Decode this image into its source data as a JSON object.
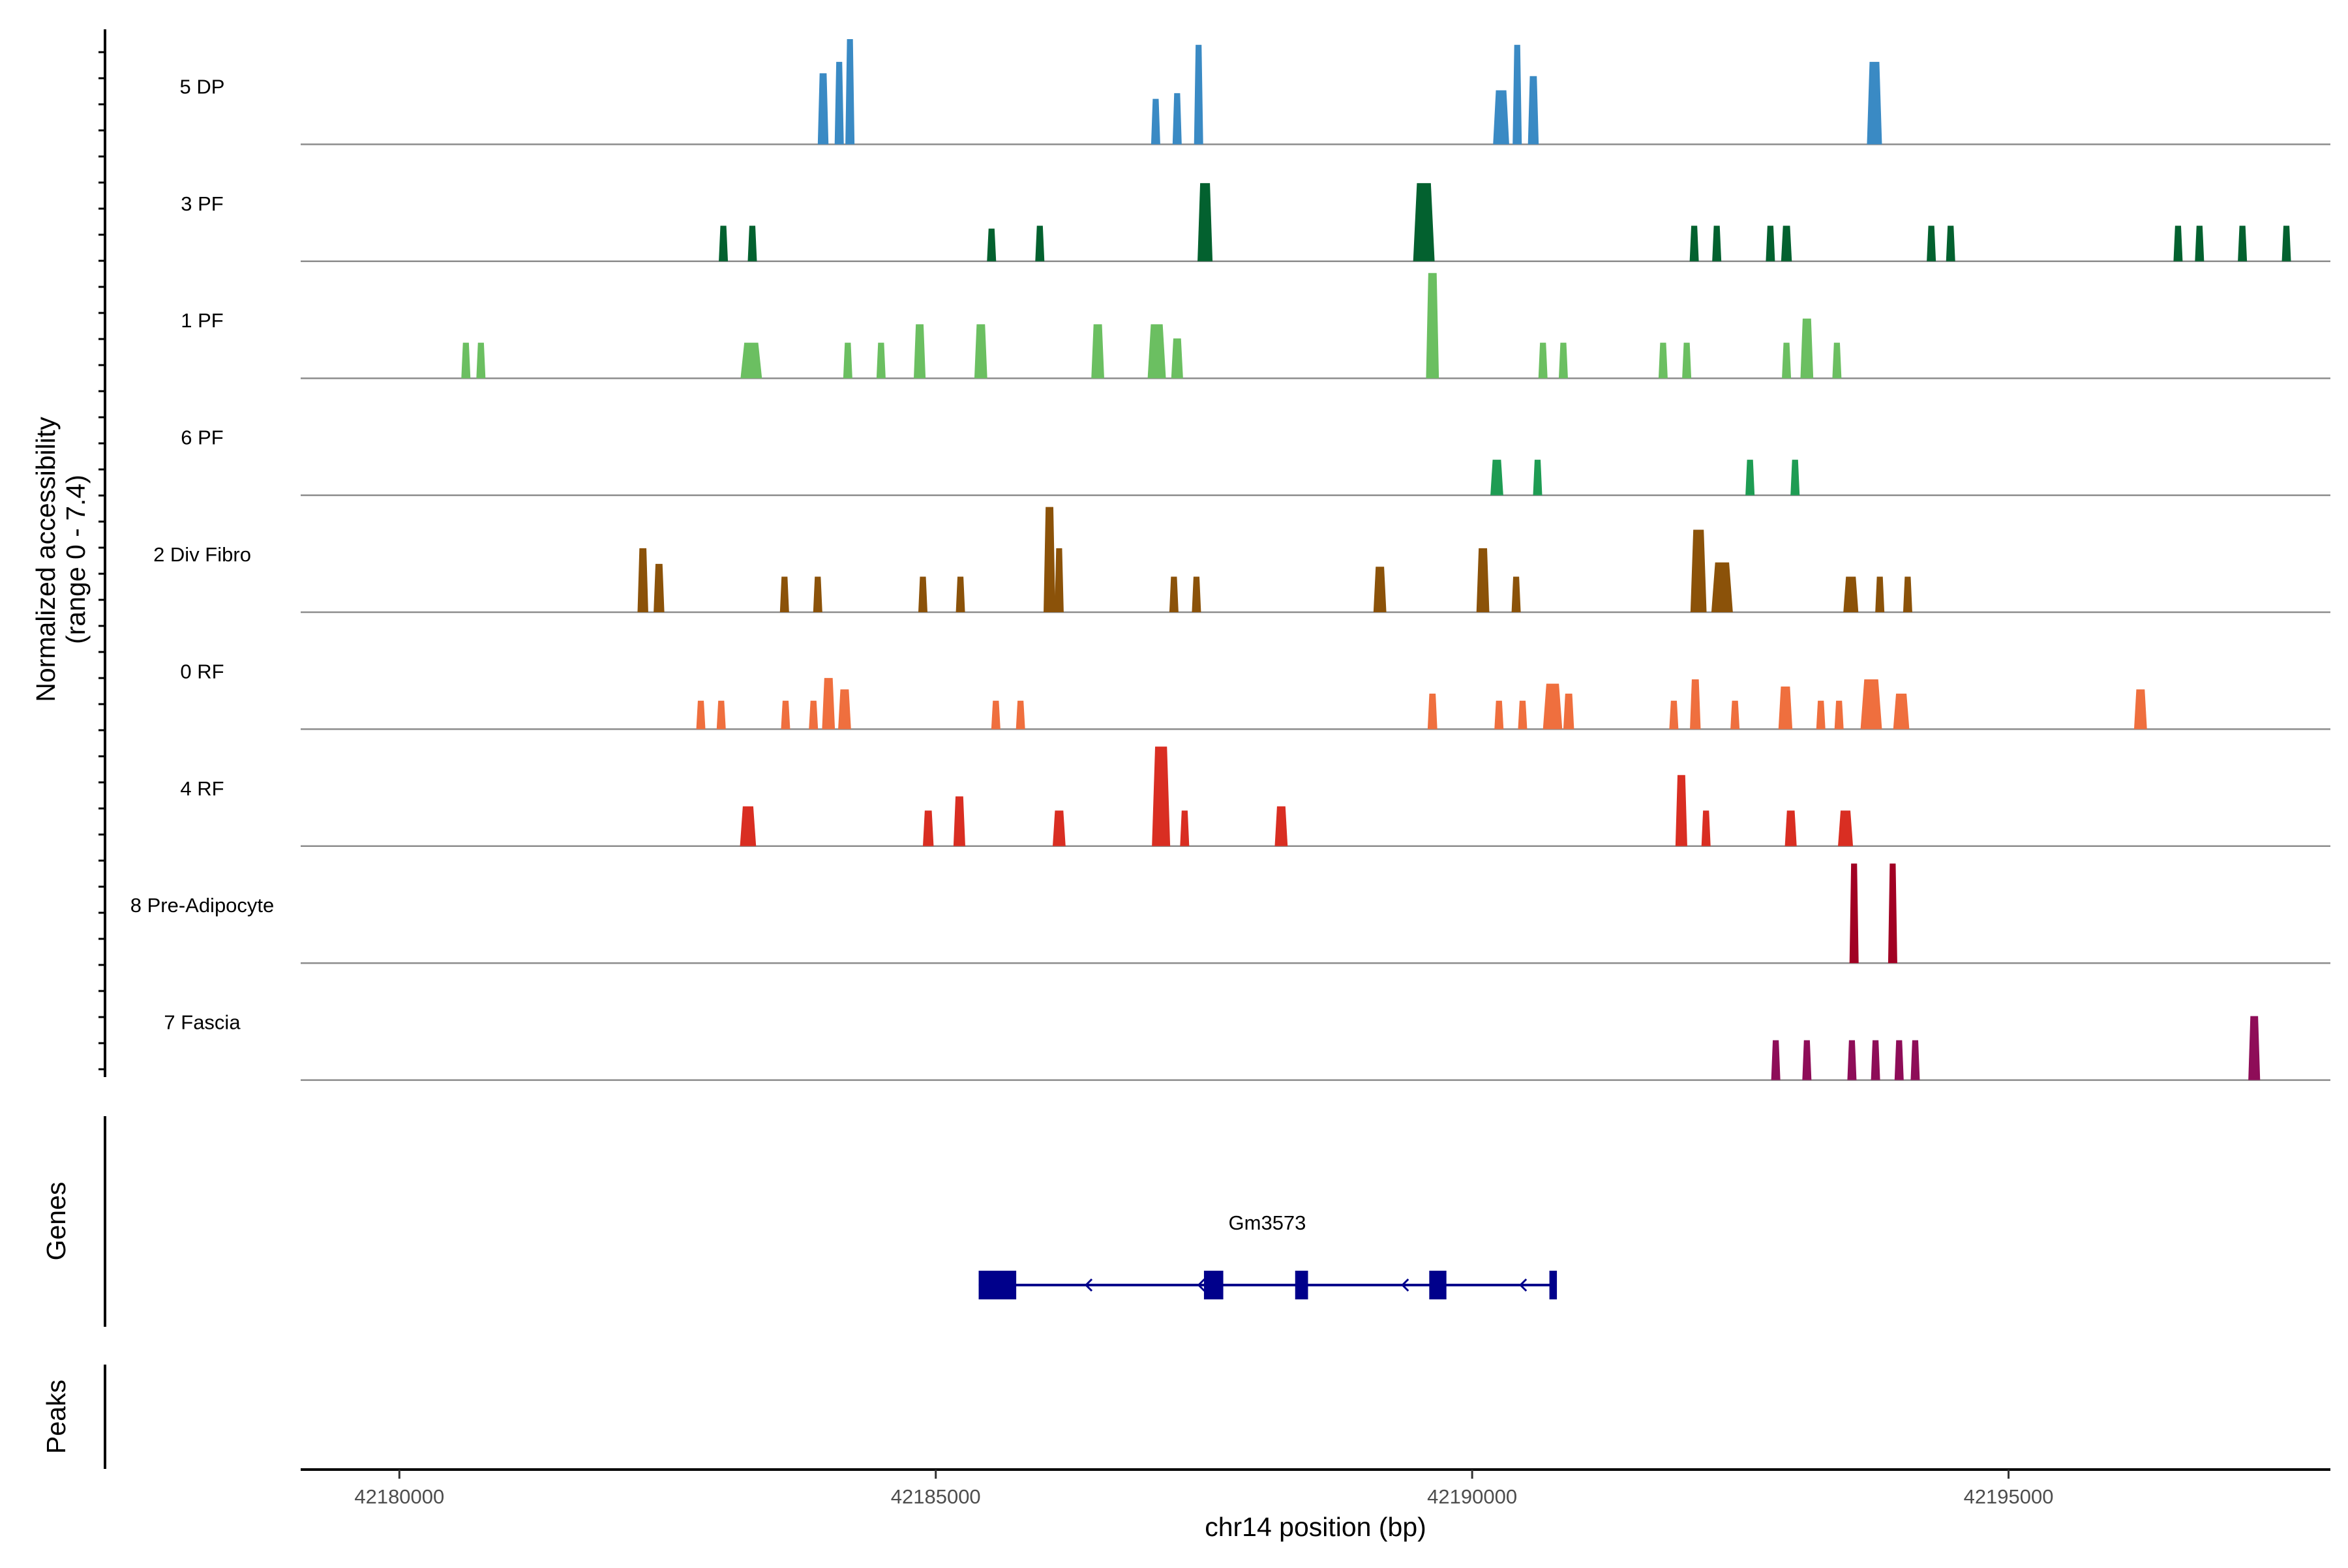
{
  "chart_data": {
    "type": "area",
    "subtype": "coverage-tracks",
    "ylabel_line1": "Normalized accessibility",
    "ylabel_line2": "(range 0 - 7.4)",
    "xlabel": "chr14 position (bp)",
    "xlim": [
      42179080,
      42198000
    ],
    "ylim": [
      0,
      7.4
    ],
    "xticks": [
      42180000,
      42185000,
      42190000,
      42195000
    ],
    "xtick_labels": [
      "42180000",
      "42185000",
      "42190000",
      "42195000"
    ],
    "genes_label": "Genes",
    "peaks_label": "Peaks",
    "gene": {
      "name": "Gm3573",
      "start": 42185400,
      "end": 42190780,
      "strand": "-",
      "color": "#00008B",
      "exons": [
        [
          42185400,
          42185750
        ],
        [
          42187500,
          42187680
        ],
        [
          42188350,
          42188470
        ],
        [
          42189600,
          42189760
        ],
        [
          42190720,
          42190790
        ]
      ],
      "arrows": [
        42186400,
        42187450,
        42189350,
        42190450
      ]
    },
    "tracks": [
      {
        "name": "5 DP",
        "color": "#3A8AC4",
        "peaks": [
          [
            42183950,
            5.0,
            100
          ],
          [
            42184100,
            5.8,
            80
          ],
          [
            42184200,
            7.4,
            60
          ],
          [
            42187050,
            3.2,
            70
          ],
          [
            42187250,
            3.6,
            60
          ],
          [
            42187450,
            7.0,
            70
          ],
          [
            42190270,
            3.8,
            150
          ],
          [
            42190420,
            7.0,
            80
          ],
          [
            42190570,
            4.8,
            100
          ],
          [
            42193750,
            5.8,
            140
          ]
        ]
      },
      {
        "name": "3 PF",
        "color": "#03612F",
        "peaks": [
          [
            42183020,
            2.5,
            70
          ],
          [
            42183290,
            2.5,
            70
          ],
          [
            42185520,
            2.3,
            70
          ],
          [
            42185970,
            2.5,
            70
          ],
          [
            42187510,
            5.5,
            140
          ],
          [
            42189550,
            5.5,
            200
          ],
          [
            42192070,
            2.5,
            80
          ],
          [
            42192280,
            2.5,
            70
          ],
          [
            42192780,
            2.5,
            80
          ],
          [
            42192930,
            2.5,
            100
          ],
          [
            42194280,
            2.5,
            70
          ],
          [
            42194460,
            2.5,
            70
          ],
          [
            42196580,
            2.5,
            80
          ],
          [
            42196780,
            2.5,
            70
          ],
          [
            42197180,
            2.5,
            70
          ],
          [
            42197590,
            2.5,
            80
          ]
        ]
      },
      {
        "name": "1 PF",
        "color": "#6BBF61",
        "peaks": [
          [
            42180620,
            2.5,
            70
          ],
          [
            42180760,
            2.5,
            60
          ],
          [
            42183280,
            2.5,
            200
          ],
          [
            42184180,
            2.5,
            70
          ],
          [
            42184490,
            2.5,
            70
          ],
          [
            42184850,
            3.8,
            110
          ],
          [
            42185420,
            3.8,
            120
          ],
          [
            42186510,
            3.8,
            120
          ],
          [
            42187060,
            3.8,
            170
          ],
          [
            42187250,
            2.8,
            110
          ],
          [
            42189630,
            7.4,
            120
          ],
          [
            42190660,
            2.5,
            70
          ],
          [
            42190850,
            2.5,
            70
          ],
          [
            42191780,
            2.5,
            70
          ],
          [
            42192000,
            2.5,
            70
          ],
          [
            42192930,
            2.5,
            70
          ],
          [
            42193120,
            4.2,
            120
          ],
          [
            42193400,
            2.5,
            70
          ]
        ]
      },
      {
        "name": "6 PF",
        "color": "#1E9C53",
        "peaks": [
          [
            42190230,
            2.5,
            120
          ],
          [
            42190610,
            2.5,
            70
          ],
          [
            42192590,
            2.5,
            70
          ],
          [
            42193010,
            2.5,
            70
          ]
        ]
      },
      {
        "name": "2 Div Fibro",
        "color": "#8B5209",
        "peaks": [
          [
            42182270,
            4.5,
            100
          ],
          [
            42182420,
            3.4,
            100
          ],
          [
            42183590,
            2.5,
            70
          ],
          [
            42183900,
            2.5,
            70
          ],
          [
            42184880,
            2.5,
            70
          ],
          [
            42185230,
            2.5,
            70
          ],
          [
            42186060,
            7.4,
            110
          ],
          [
            42186150,
            4.5,
            60
          ],
          [
            42187220,
            2.5,
            70
          ],
          [
            42187430,
            2.5,
            70
          ],
          [
            42189140,
            3.2,
            120
          ],
          [
            42190100,
            4.5,
            120
          ],
          [
            42190410,
            2.5,
            70
          ],
          [
            42192110,
            5.8,
            150
          ],
          [
            42192330,
            3.5,
            200
          ],
          [
            42193530,
            2.5,
            140
          ],
          [
            42193800,
            2.5,
            70
          ],
          [
            42194060,
            2.5,
            70
          ]
        ]
      },
      {
        "name": "0 RF",
        "color": "#EF6F3E",
        "peaks": [
          [
            42182810,
            2.0,
            70
          ],
          [
            42183000,
            2.0,
            70
          ],
          [
            42183600,
            2.0,
            70
          ],
          [
            42183860,
            2.0,
            70
          ],
          [
            42184000,
            3.6,
            120
          ],
          [
            42184150,
            2.8,
            120
          ],
          [
            42185560,
            2.0,
            70
          ],
          [
            42185790,
            2.0,
            70
          ],
          [
            42189630,
            2.5,
            90
          ],
          [
            42190250,
            2.0,
            70
          ],
          [
            42190470,
            2.0,
            70
          ],
          [
            42190750,
            3.2,
            180
          ],
          [
            42190900,
            2.5,
            100
          ],
          [
            42191880,
            2.0,
            70
          ],
          [
            42192080,
            3.5,
            100
          ],
          [
            42192450,
            2.0,
            70
          ],
          [
            42192920,
            3.0,
            130
          ],
          [
            42193250,
            2.0,
            70
          ],
          [
            42193420,
            2.0,
            70
          ],
          [
            42193720,
            3.5,
            200
          ],
          [
            42194000,
            2.5,
            150
          ],
          [
            42196230,
            2.8,
            120
          ]
        ]
      },
      {
        "name": "4 RF",
        "color": "#D92E22",
        "peaks": [
          [
            42183250,
            2.8,
            150
          ],
          [
            42184930,
            2.5,
            100
          ],
          [
            42185220,
            3.5,
            110
          ],
          [
            42186150,
            2.5,
            120
          ],
          [
            42187100,
            7.0,
            170
          ],
          [
            42187320,
            2.5,
            70
          ],
          [
            42188220,
            2.8,
            120
          ],
          [
            42191950,
            5.0,
            110
          ],
          [
            42192180,
            2.5,
            70
          ],
          [
            42192970,
            2.5,
            110
          ],
          [
            42193480,
            2.5,
            140
          ]
        ]
      },
      {
        "name": "8 Pre-Adipocyte",
        "color": "#A10123",
        "peaks": [
          [
            42193560,
            7.0,
            80
          ],
          [
            42193920,
            7.0,
            80
          ]
        ]
      },
      {
        "name": "7 Fascia",
        "color": "#8E0D58",
        "peaks": [
          [
            42192830,
            2.8,
            70
          ],
          [
            42193120,
            2.8,
            70
          ],
          [
            42193540,
            2.8,
            70
          ],
          [
            42193760,
            2.8,
            70
          ],
          [
            42193980,
            2.8,
            70
          ],
          [
            42194130,
            2.8,
            70
          ],
          [
            42197290,
            4.5,
            110
          ]
        ]
      }
    ]
  }
}
